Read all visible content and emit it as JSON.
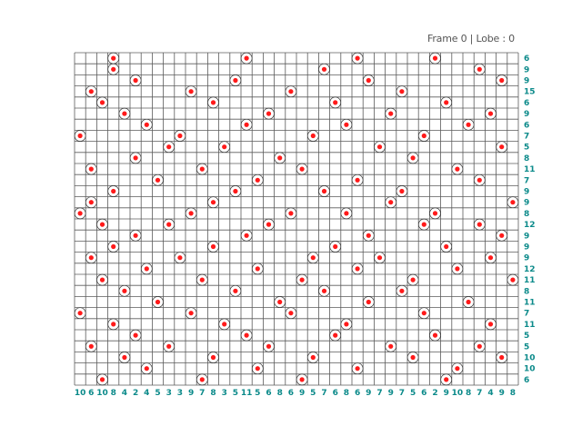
{
  "status": {
    "text": "Frame 0 | Lobe : 0"
  },
  "board": {
    "cols": 40,
    "rows": 30,
    "grid_color": "#5b5b5b",
    "bead_color": "#ff1a1a",
    "ring_color": "#333333",
    "clue_color": "#0b8a8a",
    "col_clues": [
      "10",
      "6",
      "10",
      "8",
      "4",
      "2",
      "4",
      "5",
      "3",
      "3",
      "9",
      "7",
      "8",
      "3",
      "5",
      "11",
      "5",
      "6",
      "8",
      "6",
      "9",
      "5",
      "7",
      "6",
      "8",
      "6",
      "9",
      "7",
      "9",
      "7",
      "5",
      "6",
      "2",
      "9",
      "10",
      "8",
      "7",
      "4",
      "9",
      "8"
    ],
    "row_clues": [
      "6",
      "9",
      "9",
      "15",
      "6",
      "9",
      "6",
      "7",
      "5",
      "8",
      "11",
      "7",
      "9",
      "9",
      "8",
      "12",
      "9",
      "9",
      "9",
      "12",
      "11",
      "8",
      "11",
      "7",
      "11",
      "5",
      "5",
      "10",
      "10",
      "6"
    ],
    "beads": [
      [
        3,
        0
      ],
      [
        15,
        0
      ],
      [
        25,
        0
      ],
      [
        32,
        0
      ],
      [
        3,
        1
      ],
      [
        22,
        1
      ],
      [
        36,
        1
      ],
      [
        5,
        2
      ],
      [
        14,
        2
      ],
      [
        26,
        2
      ],
      [
        38,
        2
      ],
      [
        1,
        3
      ],
      [
        10,
        3
      ],
      [
        19,
        3
      ],
      [
        29,
        3
      ],
      [
        2,
        4
      ],
      [
        12,
        4
      ],
      [
        23,
        4
      ],
      [
        33,
        4
      ],
      [
        4,
        5
      ],
      [
        17,
        5
      ],
      [
        28,
        5
      ],
      [
        37,
        5
      ],
      [
        6,
        6
      ],
      [
        15,
        6
      ],
      [
        24,
        6
      ],
      [
        35,
        6
      ],
      [
        0,
        7
      ],
      [
        9,
        7
      ],
      [
        21,
        7
      ],
      [
        31,
        7
      ],
      [
        8,
        8
      ],
      [
        13,
        8
      ],
      [
        27,
        8
      ],
      [
        38,
        8
      ],
      [
        5,
        9
      ],
      [
        18,
        9
      ],
      [
        30,
        9
      ],
      [
        1,
        10
      ],
      [
        11,
        10
      ],
      [
        20,
        10
      ],
      [
        34,
        10
      ],
      [
        7,
        11
      ],
      [
        16,
        11
      ],
      [
        25,
        11
      ],
      [
        36,
        11
      ],
      [
        3,
        12
      ],
      [
        14,
        12
      ],
      [
        22,
        12
      ],
      [
        29,
        12
      ],
      [
        1,
        13
      ],
      [
        12,
        13
      ],
      [
        28,
        13
      ],
      [
        39,
        13
      ],
      [
        0,
        14
      ],
      [
        10,
        14
      ],
      [
        19,
        14
      ],
      [
        24,
        14
      ],
      [
        32,
        14
      ],
      [
        2,
        15
      ],
      [
        8,
        15
      ],
      [
        17,
        15
      ],
      [
        31,
        15
      ],
      [
        36,
        15
      ],
      [
        5,
        16
      ],
      [
        15,
        16
      ],
      [
        26,
        16
      ],
      [
        38,
        16
      ],
      [
        3,
        17
      ],
      [
        12,
        17
      ],
      [
        23,
        17
      ],
      [
        33,
        17
      ],
      [
        1,
        18
      ],
      [
        9,
        18
      ],
      [
        21,
        18
      ],
      [
        27,
        18
      ],
      [
        37,
        18
      ],
      [
        6,
        19
      ],
      [
        16,
        19
      ],
      [
        25,
        19
      ],
      [
        34,
        19
      ],
      [
        2,
        20
      ],
      [
        11,
        20
      ],
      [
        20,
        20
      ],
      [
        30,
        20
      ],
      [
        39,
        20
      ],
      [
        4,
        21
      ],
      [
        14,
        21
      ],
      [
        22,
        21
      ],
      [
        29,
        21
      ],
      [
        7,
        22
      ],
      [
        18,
        22
      ],
      [
        26,
        22
      ],
      [
        35,
        22
      ],
      [
        0,
        23
      ],
      [
        10,
        23
      ],
      [
        19,
        23
      ],
      [
        31,
        23
      ],
      [
        3,
        24
      ],
      [
        13,
        24
      ],
      [
        24,
        24
      ],
      [
        37,
        24
      ],
      [
        5,
        25
      ],
      [
        15,
        25
      ],
      [
        23,
        25
      ],
      [
        32,
        25
      ],
      [
        1,
        26
      ],
      [
        8,
        26
      ],
      [
        17,
        26
      ],
      [
        28,
        26
      ],
      [
        36,
        26
      ],
      [
        4,
        27
      ],
      [
        12,
        27
      ],
      [
        21,
        27
      ],
      [
        30,
        27
      ],
      [
        38,
        27
      ],
      [
        6,
        28
      ],
      [
        16,
        28
      ],
      [
        25,
        28
      ],
      [
        34,
        28
      ],
      [
        2,
        29
      ],
      [
        11,
        29
      ],
      [
        20,
        29
      ],
      [
        33,
        29
      ]
    ]
  }
}
